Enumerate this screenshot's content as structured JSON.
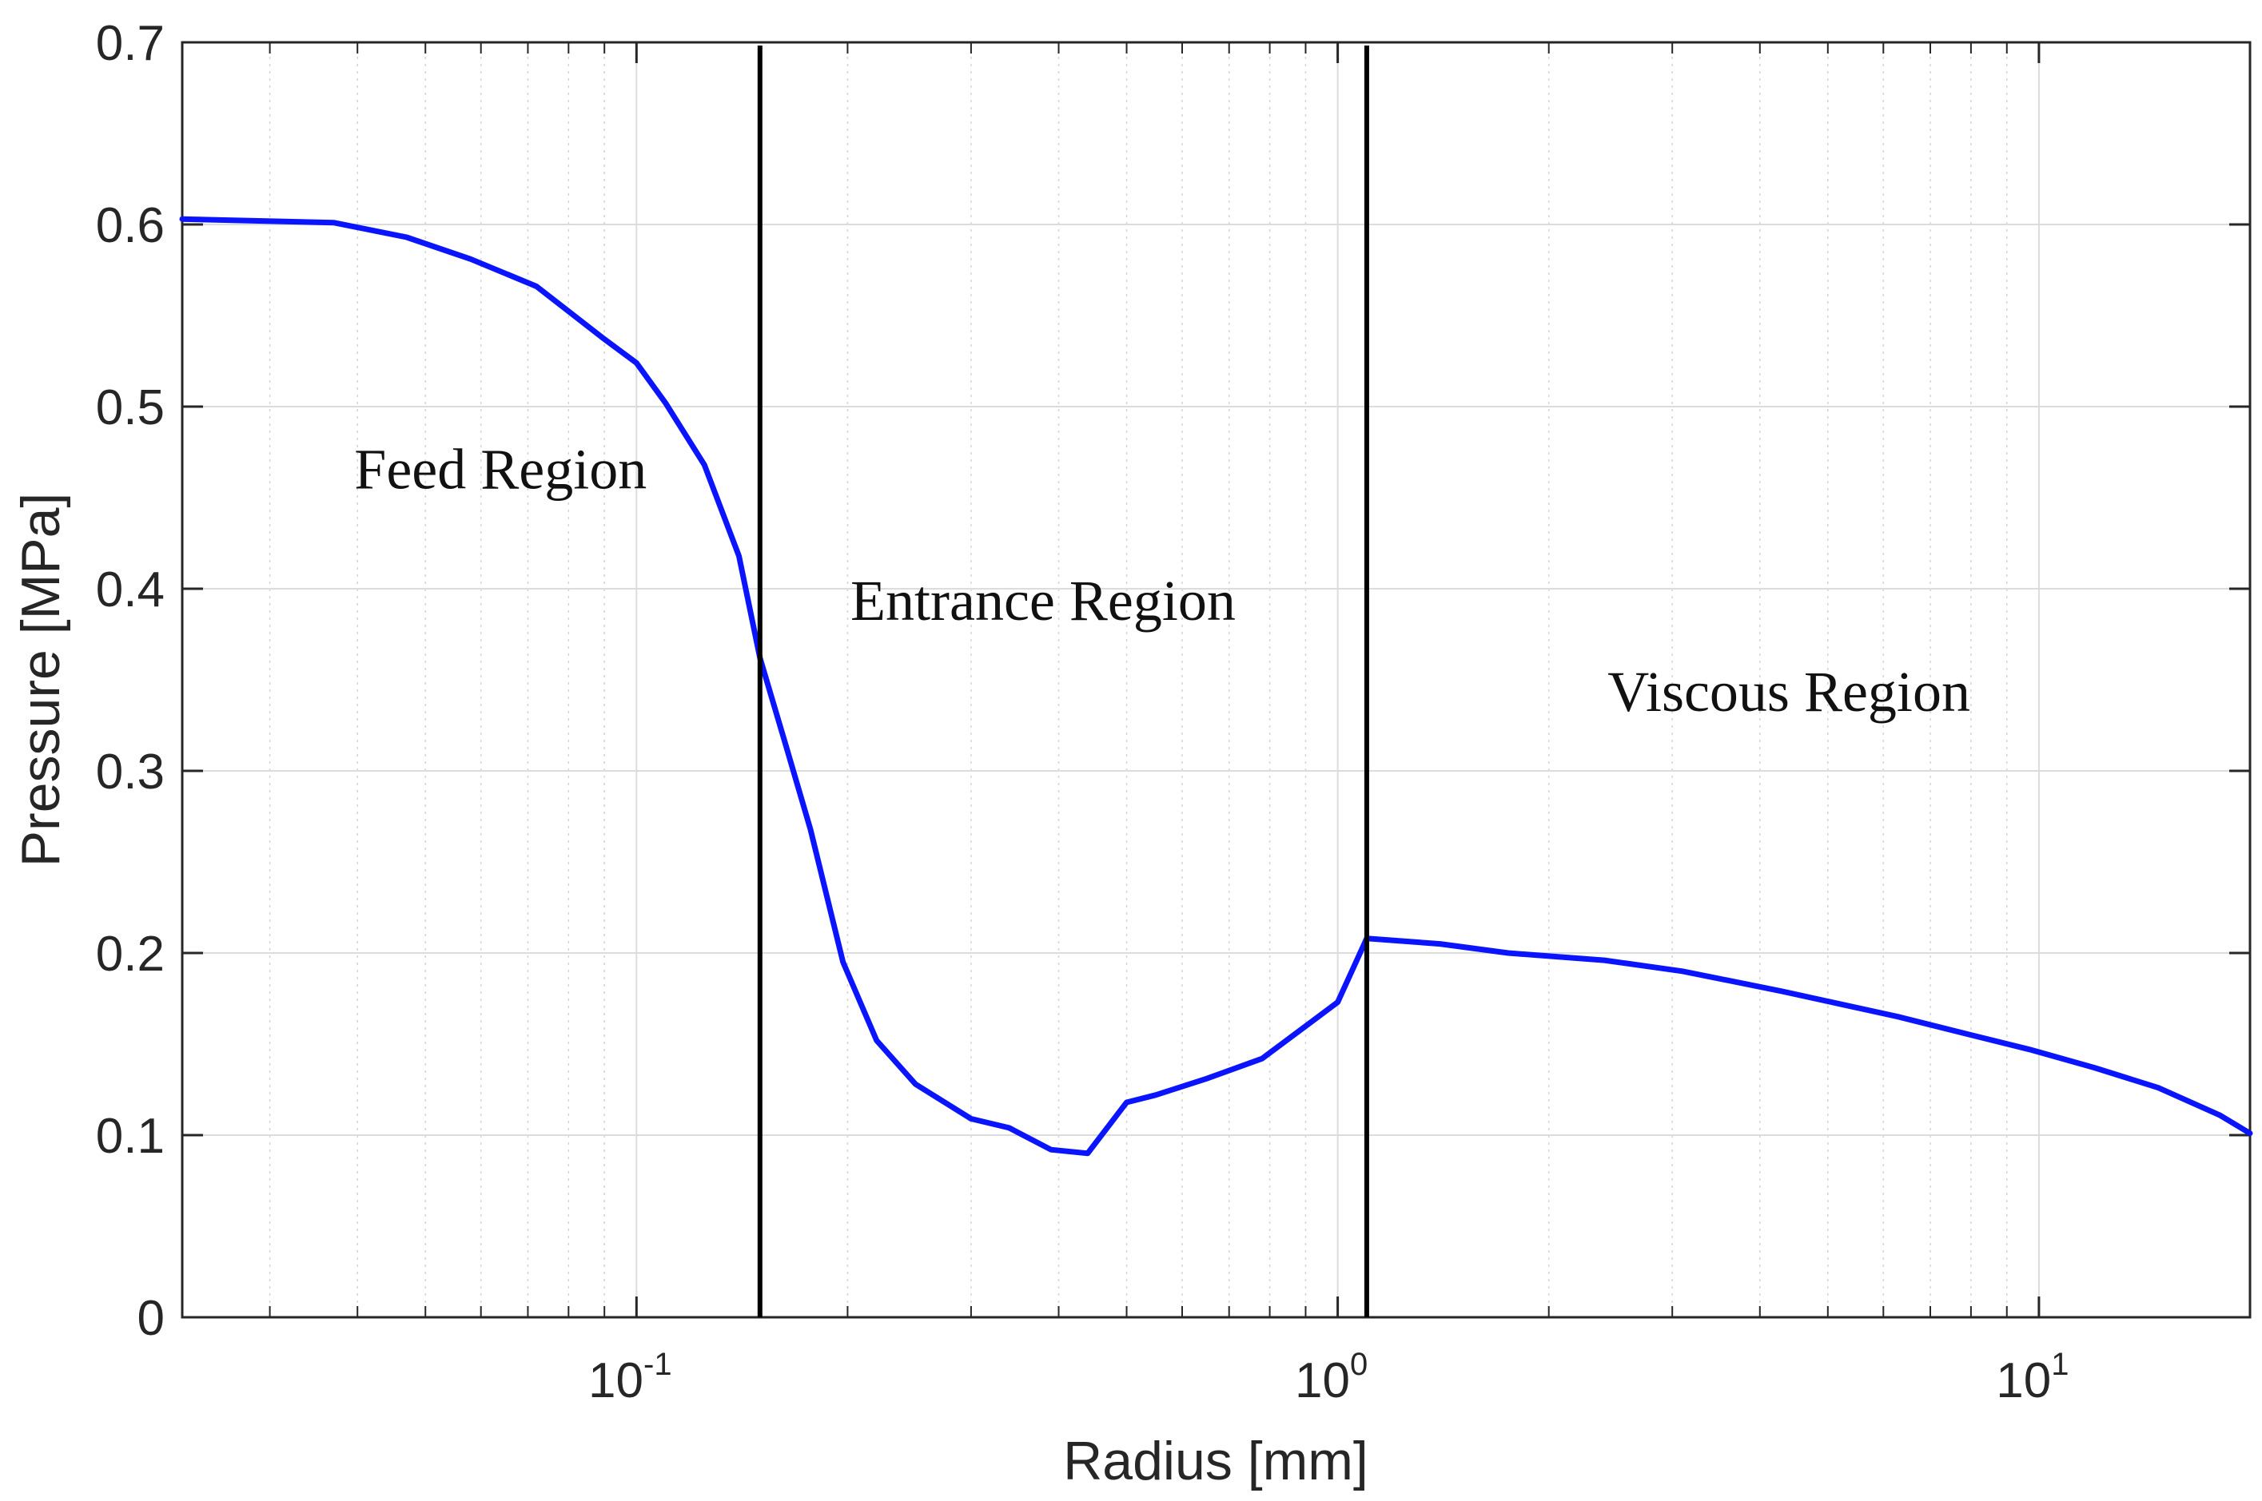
{
  "chart_data": {
    "type": "line",
    "xscale": "log",
    "xlabel": "Radius [mm]",
    "ylabel": "Pressure [MPa]",
    "xlim": [
      0.0225,
      20
    ],
    "ylim": [
      0,
      0.7
    ],
    "grid": true,
    "x_ticks": [
      {
        "value": 0.1,
        "base": "10",
        "exp": "-1"
      },
      {
        "value": 1,
        "base": "10",
        "exp": "0"
      },
      {
        "value": 10,
        "base": "10",
        "exp": "1"
      }
    ],
    "y_ticks": [
      {
        "value": 0,
        "label": "0"
      },
      {
        "value": 0.1,
        "label": "0.1"
      },
      {
        "value": 0.2,
        "label": "0.2"
      },
      {
        "value": 0.3,
        "label": "0.3"
      },
      {
        "value": 0.4,
        "label": "0.4"
      },
      {
        "value": 0.5,
        "label": "0.5"
      },
      {
        "value": 0.6,
        "label": "0.6"
      },
      {
        "value": 0.7,
        "label": "0.7"
      }
    ],
    "boundaries": [
      0.15,
      1.1
    ],
    "annotations": [
      {
        "text": "Feed Region",
        "x": 0.064,
        "y": 0.455
      },
      {
        "text": "Entrance Region",
        "x": 0.38,
        "y": 0.383
      },
      {
        "text": "Viscous Region",
        "x": 4.4,
        "y": 0.333
      }
    ],
    "series": [
      {
        "color": "#0a14ff",
        "x": [
          0.0225,
          0.037,
          0.047,
          0.058,
          0.072,
          0.09,
          0.1,
          0.11,
          0.125,
          0.14,
          0.15,
          0.163,
          0.177,
          0.197,
          0.22,
          0.25,
          0.3,
          0.34,
          0.39,
          0.44,
          0.5,
          0.55,
          0.65,
          0.78,
          1.0,
          1.1,
          1.4,
          1.75,
          2.4,
          3.1,
          4.3,
          5.2,
          6.3,
          8.0,
          9.7,
          12.0,
          14.8,
          18.1,
          20.0
        ],
        "y": [
          0.603,
          0.601,
          0.593,
          0.581,
          0.566,
          0.537,
          0.524,
          0.502,
          0.468,
          0.418,
          0.362,
          0.315,
          0.268,
          0.195,
          0.152,
          0.128,
          0.109,
          0.104,
          0.092,
          0.09,
          0.118,
          0.122,
          0.131,
          0.142,
          0.173,
          0.208,
          0.205,
          0.2,
          0.196,
          0.19,
          0.179,
          0.172,
          0.165,
          0.155,
          0.147,
          0.137,
          0.126,
          0.111,
          0.101
        ]
      }
    ]
  }
}
